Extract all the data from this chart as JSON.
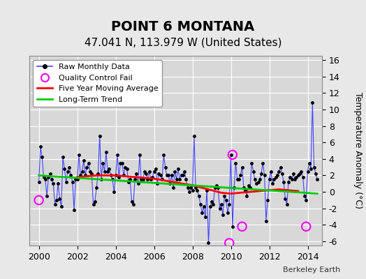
{
  "title": "POINT 6 MONTANA",
  "subtitle": "47.041 N, 113.979 W (United States)",
  "ylabel": "Temperature Anomaly (°C)",
  "xlabel": "",
  "watermark": "Berkeley Earth",
  "xlim": [
    1999.5,
    2014.75
  ],
  "ylim": [
    -6.5,
    16.5
  ],
  "yticks": [
    -6,
    -4,
    -2,
    0,
    2,
    4,
    6,
    8,
    10,
    12,
    14,
    16
  ],
  "xticks": [
    2000,
    2002,
    2004,
    2006,
    2008,
    2010,
    2012,
    2014
  ],
  "background_color": "#e8e8e8",
  "plot_bg_color": "#d8d8d8",
  "grid_color": "#ffffff",
  "raw_color": "#4444ff",
  "raw_dot_color": "#000000",
  "ma_color": "#ff0000",
  "trend_color": "#00cc00",
  "qc_color": "#ff00ff",
  "raw_data": {
    "x": [
      2000.0,
      2000.083,
      2000.167,
      2000.25,
      2000.333,
      2000.417,
      2000.5,
      2000.583,
      2000.667,
      2000.75,
      2000.833,
      2000.917,
      2001.0,
      2001.083,
      2001.167,
      2001.25,
      2001.333,
      2001.417,
      2001.5,
      2001.583,
      2001.667,
      2001.75,
      2001.833,
      2001.917,
      2002.0,
      2002.083,
      2002.167,
      2002.25,
      2002.333,
      2002.417,
      2002.5,
      2002.583,
      2002.667,
      2002.75,
      2002.833,
      2002.917,
      2003.0,
      2003.083,
      2003.167,
      2003.25,
      2003.333,
      2003.417,
      2003.5,
      2003.583,
      2003.667,
      2003.75,
      2003.833,
      2003.917,
      2004.0,
      2004.083,
      2004.167,
      2004.25,
      2004.333,
      2004.417,
      2004.5,
      2004.583,
      2004.667,
      2004.75,
      2004.833,
      2004.917,
      2005.0,
      2005.083,
      2005.167,
      2005.25,
      2005.333,
      2005.417,
      2005.5,
      2005.583,
      2005.667,
      2005.75,
      2005.833,
      2005.917,
      2006.0,
      2006.083,
      2006.167,
      2006.25,
      2006.333,
      2006.417,
      2006.5,
      2006.583,
      2006.667,
      2006.75,
      2006.833,
      2006.917,
      2007.0,
      2007.083,
      2007.167,
      2007.25,
      2007.333,
      2007.417,
      2007.5,
      2007.583,
      2007.667,
      2007.75,
      2007.833,
      2007.917,
      2008.0,
      2008.083,
      2008.167,
      2008.25,
      2008.333,
      2008.417,
      2008.5,
      2008.583,
      2008.667,
      2008.75,
      2008.833,
      2008.917,
      2009.0,
      2009.083,
      2009.167,
      2009.25,
      2009.333,
      2009.417,
      2009.5,
      2009.583,
      2009.667,
      2009.75,
      2009.833,
      2009.917,
      2010.0,
      2010.083,
      2010.167,
      2010.25,
      2010.333,
      2010.417,
      2010.5,
      2010.583,
      2010.667,
      2010.75,
      2010.833,
      2010.917,
      2011.0,
      2011.083,
      2011.167,
      2011.25,
      2011.333,
      2011.417,
      2011.5,
      2011.583,
      2011.667,
      2011.75,
      2011.833,
      2011.917,
      2012.0,
      2012.083,
      2012.167,
      2012.25,
      2012.333,
      2012.417,
      2012.5,
      2012.583,
      2012.667,
      2012.75,
      2012.833,
      2012.917,
      2013.0,
      2013.083,
      2013.167,
      2013.25,
      2013.333,
      2013.417,
      2013.5,
      2013.583,
      2013.667,
      2013.75,
      2013.833,
      2013.917,
      2014.0,
      2014.083,
      2014.167,
      2014.25,
      2014.333,
      2014.417,
      2014.5
    ],
    "y": [
      1.2,
      5.5,
      4.2,
      1.8,
      1.5,
      -0.5,
      1.8,
      2.2,
      1.5,
      1.0,
      -1.5,
      -1.0,
      1.0,
      -0.8,
      -1.8,
      4.2,
      2.8,
      1.2,
      2.5,
      3.0,
      2.0,
      1.2,
      -2.2,
      1.5,
      1.5,
      4.5,
      2.0,
      2.5,
      3.8,
      2.0,
      3.0,
      3.5,
      2.5,
      2.2,
      -1.5,
      -1.2,
      0.5,
      2.2,
      6.8,
      1.5,
      3.5,
      2.5,
      4.8,
      2.5,
      2.8,
      2.0,
      1.5,
      0.0,
      2.0,
      4.5,
      1.8,
      3.5,
      3.5,
      2.0,
      3.0,
      2.8,
      1.2,
      1.5,
      -1.2,
      -1.5,
      1.5,
      2.2,
      1.0,
      4.5,
      1.5,
      1.5,
      2.5,
      2.2,
      1.5,
      2.5,
      1.5,
      1.8,
      2.5,
      2.8,
      1.0,
      2.2,
      2.0,
      1.5,
      4.5,
      3.0,
      2.0,
      2.0,
      1.0,
      2.0,
      0.5,
      2.5,
      1.5,
      2.8,
      1.5,
      2.0,
      2.0,
      2.5,
      1.5,
      0.5,
      0.0,
      0.5,
      0.2,
      6.8,
      0.5,
      0.2,
      -0.5,
      -1.5,
      -2.5,
      -1.8,
      -3.0,
      0.2,
      -6.2,
      -1.8,
      -1.2,
      -1.5,
      0.5,
      0.8,
      0.5,
      -2.0,
      -1.5,
      -2.8,
      -0.5,
      -1.0,
      -2.5,
      -1.5,
      4.5,
      -4.2,
      0.5,
      3.5,
      1.5,
      1.5,
      2.0,
      3.0,
      0.5,
      0.2,
      -0.5,
      0.8,
      0.5,
      3.5,
      2.5,
      1.5,
      1.0,
      1.2,
      1.5,
      2.2,
      3.5,
      2.0,
      -3.5,
      -1.0,
      1.5,
      2.5,
      1.0,
      1.5,
      1.8,
      2.0,
      2.5,
      3.0,
      2.2,
      1.2,
      -0.8,
      -1.5,
      1.2,
      1.8,
      1.5,
      2.2,
      1.5,
      1.8,
      2.0,
      2.2,
      2.5,
      1.8,
      -0.5,
      -1.0,
      2.5,
      3.5,
      2.8,
      10.8,
      3.0,
      2.2,
      1.5
    ]
  },
  "qc_fail_points": {
    "x": [
      2000.0,
      2009.917,
      2010.083,
      2010.583,
      2013.917
    ],
    "y": [
      -1.0,
      -6.2,
      4.5,
      -4.2,
      -4.2
    ]
  },
  "moving_avg": {
    "x": [
      2002.0,
      2002.5,
      2003.0,
      2003.5,
      2004.0,
      2004.5,
      2005.0,
      2005.5,
      2006.0,
      2006.5,
      2007.0,
      2007.5,
      2008.0,
      2008.5,
      2009.0,
      2009.5,
      2010.0,
      2010.5,
      2011.0,
      2011.5,
      2012.0,
      2012.5,
      2013.0,
      2013.5
    ],
    "y": [
      1.8,
      1.9,
      2.0,
      2.0,
      2.0,
      1.9,
      1.8,
      1.7,
      1.6,
      1.4,
      1.2,
      1.0,
      0.8,
      0.5,
      0.2,
      -0.1,
      -0.2,
      -0.1,
      0.0,
      0.1,
      0.2,
      0.3,
      0.2,
      0.1
    ]
  },
  "trend": {
    "x": [
      2000.0,
      2014.5
    ],
    "y": [
      2.0,
      -0.2
    ]
  },
  "legend_loc": "upper left",
  "title_fontsize": 14,
  "subtitle_fontsize": 11
}
